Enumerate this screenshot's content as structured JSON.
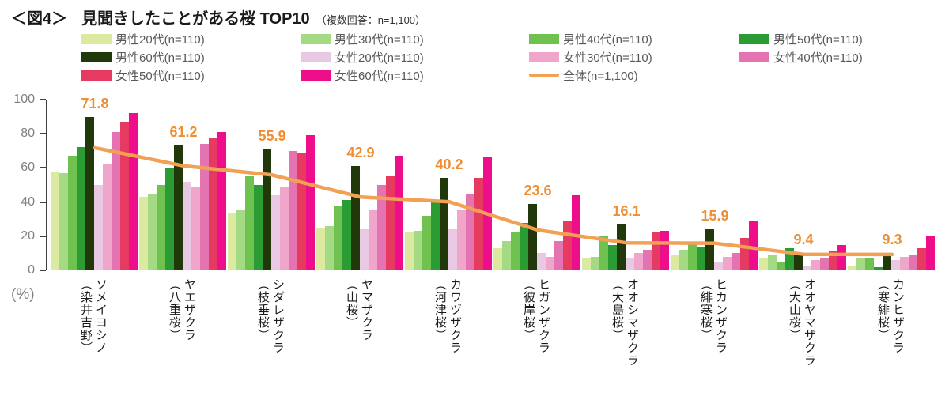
{
  "figure": {
    "tag": "＜図4＞",
    "title": "見聞きしたことがある桜 TOP10",
    "note": "（複数回答：n=1,100）"
  },
  "unit_label": "(%)",
  "chart_data": {
    "type": "bar",
    "title": "見聞きしたことがある桜 TOP10（複数回答：n=1,100）",
    "ylabel": "(%)",
    "ylim": [
      0,
      100
    ],
    "yticks": [
      0,
      20,
      40,
      60,
      80,
      100
    ],
    "grid": false,
    "legend_position": "top",
    "categories": [
      {
        "name": "ソメイヨシノ",
        "alt": "（染井吉野）"
      },
      {
        "name": "ヤエザクラ",
        "alt": "（八重桜）"
      },
      {
        "name": "シダレザクラ",
        "alt": "（枝垂桜）"
      },
      {
        "name": "ヤマザクラ",
        "alt": "（山桜）"
      },
      {
        "name": "カワヅザクラ",
        "alt": "（河津桜）"
      },
      {
        "name": "ヒガンザクラ",
        "alt": "（彼岸桜）"
      },
      {
        "name": "オオシマザクラ",
        "alt": "（大島桜）"
      },
      {
        "name": "ヒカンザクラ",
        "alt": "（緋寒桜）"
      },
      {
        "name": "オオヤマザクラ",
        "alt": "（大山桜）"
      },
      {
        "name": "カンヒザクラ",
        "alt": "（寒緋桜）"
      }
    ],
    "series": [
      {
        "name": "男性20代(n=110)",
        "color": "#DCE9A1",
        "values": [
          58,
          43,
          34,
          25,
          22,
          13,
          7,
          9,
          7,
          3
        ]
      },
      {
        "name": "男性30代(n=110)",
        "color": "#A5DA85",
        "values": [
          57,
          45,
          35,
          26,
          23,
          17,
          8,
          12,
          9,
          7
        ]
      },
      {
        "name": "男性40代(n=110)",
        "color": "#6FC24F",
        "values": [
          67,
          50,
          55,
          38,
          32,
          22,
          20,
          16,
          5,
          7
        ]
      },
      {
        "name": "男性50代(n=110)",
        "color": "#2B9C33",
        "values": [
          72,
          60,
          50,
          41,
          40,
          28,
          15,
          14,
          13,
          2
        ]
      },
      {
        "name": "男性60代(n=110)",
        "color": "#21380A",
        "values": [
          90,
          73,
          71,
          61,
          54,
          39,
          27,
          24,
          10,
          10
        ]
      },
      {
        "name": "女性20代(n=110)",
        "color": "#E8C8E2",
        "values": [
          50,
          52,
          44,
          24,
          24,
          10,
          7,
          5,
          3,
          6
        ]
      },
      {
        "name": "女性30代(n=110)",
        "color": "#F0A5CA",
        "values": [
          62,
          49,
          49,
          35,
          35,
          8,
          10,
          8,
          6,
          8
        ]
      },
      {
        "name": "女性40代(n=110)",
        "color": "#E473B1",
        "values": [
          81,
          74,
          70,
          50,
          45,
          17,
          12,
          10,
          7,
          9
        ]
      },
      {
        "name": "女性50代(n=110)",
        "color": "#E63A60",
        "values": [
          87,
          78,
          69,
          55,
          54,
          29,
          22,
          19,
          11,
          13
        ]
      },
      {
        "name": "女性60代(n=110)",
        "color": "#EE0E8B",
        "values": [
          92,
          81,
          79,
          67,
          66,
          44,
          23,
          29,
          15,
          20
        ]
      }
    ],
    "line_series": {
      "name": "全体(n=1,100)",
      "color": "#F2A054",
      "label_color": "#EF8E35",
      "values": [
        71.8,
        61.2,
        55.9,
        42.9,
        40.2,
        23.6,
        16.1,
        15.9,
        9.4,
        9.3
      ]
    }
  }
}
